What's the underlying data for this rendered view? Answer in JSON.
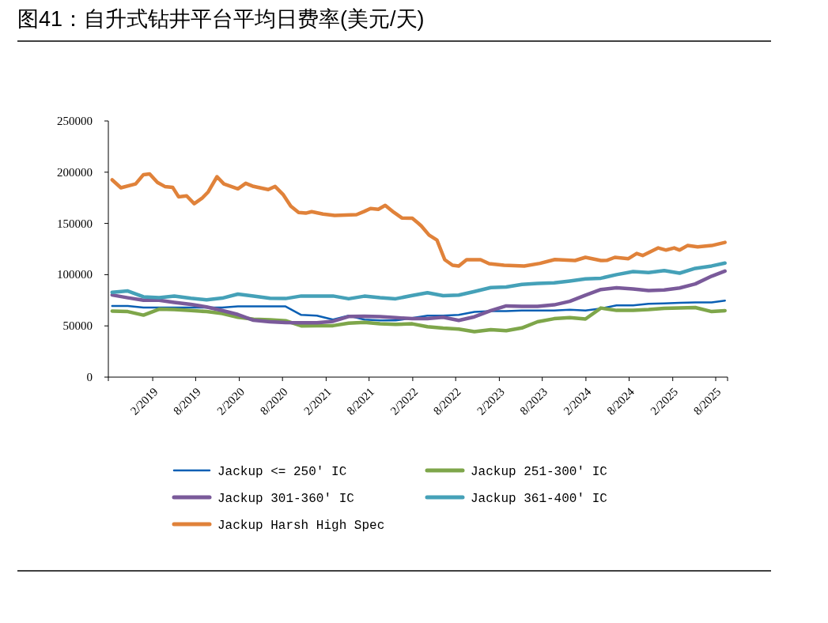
{
  "chart_data": {
    "type": "line",
    "title": "图41：自升式钻井平台平均日费率(美元/天)",
    "xlim": [
      "2018-07-29",
      "2025-09-20"
    ],
    "xticks": [
      {
        "value": "2019-02-01",
        "label": "2/2019"
      },
      {
        "value": "2019-08-01",
        "label": "8/2019"
      },
      {
        "value": "2020-02-01",
        "label": "2/2020"
      },
      {
        "value": "2020-08-01",
        "label": "8/2020"
      },
      {
        "value": "2021-02-01",
        "label": "2/2021"
      },
      {
        "value": "2021-08-01",
        "label": "8/2021"
      },
      {
        "value": "2022-02-01",
        "label": "2/2022"
      },
      {
        "value": "2022-08-01",
        "label": "8/2022"
      },
      {
        "value": "2023-02-01",
        "label": "2/2023"
      },
      {
        "value": "2023-08-01",
        "label": "8/2023"
      },
      {
        "value": "2024-02-01",
        "label": "2/2024"
      },
      {
        "value": "2024-08-01",
        "label": "8/2024"
      },
      {
        "value": "2025-02-01",
        "label": "2/2025"
      },
      {
        "value": "2025-08-01",
        "label": "8/2025"
      }
    ],
    "ylim": [
      0,
      250000
    ],
    "yticks": [
      0,
      50000,
      100000,
      150000,
      200000,
      250000
    ],
    "legend": "bottom",
    "x": [
      "2018-08-14",
      "2018-10-19",
      "2018-12-24",
      "2019-02-28",
      "2019-05-03",
      "2019-07-12",
      "2019-09-16",
      "2019-11-21",
      "2020-01-26",
      "2020-04-01",
      "2020-06-09",
      "2020-08-14",
      "2020-10-19",
      "2020-12-24",
      "2021-03-02",
      "2021-05-07",
      "2021-07-12",
      "2021-09-16",
      "2021-11-21",
      "2022-01-30",
      "2022-04-04",
      "2022-06-09",
      "2022-08-14",
      "2022-10-19",
      "2022-12-27",
      "2023-03-02",
      "2023-05-07",
      "2023-07-12",
      "2023-09-20",
      "2023-11-25",
      "2024-01-30",
      "2024-04-04",
      "2024-06-09",
      "2024-08-18",
      "2024-10-22",
      "2024-12-27",
      "2025-03-02",
      "2025-05-07",
      "2025-07-15",
      "2025-09-09"
    ],
    "series": [
      {
        "name": "Jackup <= 250' IC",
        "color": "#0a5fb4",
        "values": [
          69400,
          69400,
          67900,
          67900,
          67900,
          67900,
          67900,
          67900,
          69000,
          69000,
          69000,
          69000,
          60700,
          60000,
          56100,
          60000,
          56100,
          55300,
          55300,
          57700,
          60000,
          60000,
          60700,
          63600,
          64400,
          64400,
          65000,
          65000,
          65000,
          65800,
          65000,
          67000,
          70000,
          70000,
          71600,
          72000,
          72500,
          72900,
          73000,
          74700
        ]
      },
      {
        "name": "Jackup 251-300' IC",
        "color": "#7ea64a",
        "values": [
          64400,
          64000,
          60500,
          66300,
          66000,
          65000,
          64000,
          62000,
          58500,
          56500,
          56000,
          55000,
          50000,
          50200,
          50200,
          52700,
          53500,
          52000,
          51500,
          52000,
          49200,
          47800,
          46900,
          44400,
          46300,
          45400,
          48000,
          54000,
          57000,
          58000,
          56700,
          67400,
          65100,
          65300,
          66000,
          67200,
          67500,
          67900,
          64000,
          64800
        ]
      },
      {
        "name": "Jackup 301-360' IC",
        "color": "#7a5a9a",
        "values": [
          80200,
          77500,
          75000,
          75000,
          73000,
          71000,
          68500,
          65000,
          61100,
          55500,
          54000,
          53200,
          53000,
          53000,
          54500,
          59200,
          59500,
          59000,
          58000,
          57000,
          57000,
          58500,
          55400,
          58900,
          65000,
          69500,
          69000,
          69000,
          70500,
          74000,
          80000,
          85500,
          87200,
          86000,
          84500,
          85100,
          87000,
          91000,
          98500,
          103500
        ]
      },
      {
        "name": "Jackup 361-400' IC",
        "color": "#45a1b8",
        "values": [
          82800,
          84000,
          78400,
          77600,
          79000,
          77000,
          75500,
          77100,
          81000,
          79000,
          77000,
          76700,
          79200,
          79200,
          79200,
          76500,
          79000,
          77500,
          76500,
          79700,
          82300,
          79500,
          80000,
          83500,
          87400,
          88000,
          90500,
          91500,
          92000,
          93800,
          95800,
          96500,
          100000,
          103000,
          102000,
          104000,
          101500,
          106200,
          108500,
          111300
        ]
      },
      {
        "name": "Jackup Harsh High Spec",
        "color": "#e0823a",
        "x": [
          "2018-08-14",
          "2018-09-20",
          "2018-11-21",
          "2018-12-24",
          "2019-01-19",
          "2019-02-21",
          "2019-03-24",
          "2019-04-26",
          "2019-05-21",
          "2019-06-24",
          "2019-07-26",
          "2019-08-28",
          "2019-09-23",
          "2019-10-30",
          "2019-11-28",
          "2020-01-26",
          "2020-02-28",
          "2020-04-01",
          "2020-06-02",
          "2020-07-01",
          "2020-08-03",
          "2020-09-05",
          "2020-10-08",
          "2020-11-07",
          "2020-12-02",
          "2021-01-19",
          "2021-03-09",
          "2021-06-09",
          "2021-07-12",
          "2021-08-07",
          "2021-09-09",
          "2021-10-08",
          "2021-11-14",
          "2021-12-17",
          "2022-01-30",
          "2022-02-24",
          "2022-03-09",
          "2022-04-11",
          "2022-05-14",
          "2022-06-16",
          "2022-07-19",
          "2022-08-14",
          "2022-09-16",
          "2022-11-14",
          "2022-12-20",
          "2023-02-21",
          "2023-05-17",
          "2023-07-22",
          "2023-09-23",
          "2023-12-17",
          "2024-01-30",
          "2024-04-04",
          "2024-04-29",
          "2024-06-02",
          "2024-07-29",
          "2024-09-02",
          "2024-09-27",
          "2024-12-02",
          "2025-01-04",
          "2025-02-07",
          "2025-03-02",
          "2025-04-04",
          "2025-05-17",
          "2025-07-15",
          "2025-09-09"
        ],
        "values": [
          192500,
          184800,
          188600,
          197600,
          198400,
          190000,
          186000,
          185300,
          176000,
          176900,
          169200,
          174600,
          180800,
          195600,
          188600,
          183800,
          189200,
          186100,
          183000,
          186100,
          178400,
          166900,
          160700,
          160000,
          161500,
          159200,
          157900,
          158600,
          161700,
          164600,
          163800,
          167600,
          160700,
          155300,
          155000,
          150200,
          147600,
          138600,
          133800,
          114600,
          109200,
          108400,
          114600,
          114600,
          110700,
          109200,
          108400,
          111000,
          114800,
          113800,
          116900,
          113800,
          114000,
          116900,
          115600,
          120700,
          118700,
          126100,
          124000,
          126100,
          124000,
          128400,
          127100,
          128400,
          131500
        ]
      }
    ]
  }
}
